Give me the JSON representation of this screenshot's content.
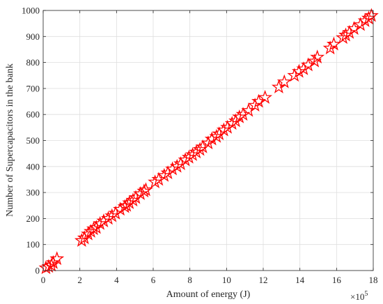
{
  "chart_data": {
    "type": "scatter",
    "title": "",
    "xlabel": "Amount of energy (J)",
    "ylabel": "Number of Supercapacitors in the bank",
    "x_exponent_label": "×10",
    "x_exponent_power": "5",
    "xlim": [
      0,
      18
    ],
    "ylim": [
      0,
      1000
    ],
    "x_scale_multiplier": 100000,
    "xticks": [
      "0",
      "2",
      "4",
      "6",
      "8",
      "10",
      "12",
      "14",
      "16",
      "18"
    ],
    "yticks": [
      "0",
      "100",
      "200",
      "300",
      "400",
      "500",
      "600",
      "700",
      "800",
      "900",
      "1000"
    ],
    "grid": true,
    "marker": "star",
    "marker_color": "#ff0000",
    "series": [
      {
        "x": [
          0.15,
          0.3,
          0.45,
          0.55,
          0.75,
          2.1,
          2.25,
          2.45,
          2.6,
          2.75,
          2.9,
          3.1,
          3.3,
          3.55,
          3.75,
          3.95,
          4.2,
          4.45,
          4.55,
          4.7,
          4.9,
          5.05,
          5.3,
          5.5,
          5.6,
          6.1,
          6.3,
          6.6,
          6.8,
          7.05,
          7.3,
          7.5,
          7.75,
          7.95,
          8.15,
          8.35,
          8.55,
          8.7,
          9.0,
          9.2,
          9.45,
          9.6,
          9.85,
          10.05,
          10.3,
          10.5,
          10.7,
          10.9,
          11.2,
          11.55,
          11.75,
          12.1,
          12.85,
          13.15,
          13.7,
          13.95,
          14.2,
          14.45,
          14.8,
          14.95,
          15.65,
          15.85,
          16.35,
          16.5,
          16.7,
          16.95,
          17.3,
          17.55,
          17.75,
          17.9
        ],
        "y": [
          10,
          15,
          20,
          30,
          45,
          115,
          125,
          140,
          150,
          160,
          165,
          180,
          190,
          200,
          210,
          220,
          235,
          245,
          250,
          260,
          270,
          280,
          295,
          305,
          310,
          340,
          350,
          365,
          375,
          390,
          400,
          410,
          425,
          435,
          445,
          455,
          465,
          475,
          490,
          505,
          515,
          525,
          540,
          550,
          565,
          575,
          590,
          600,
          615,
          635,
          650,
          665,
          705,
          725,
          750,
          765,
          775,
          790,
          805,
          820,
          855,
          870,
          895,
          905,
          915,
          930,
          945,
          960,
          970,
          980
        ]
      }
    ]
  }
}
